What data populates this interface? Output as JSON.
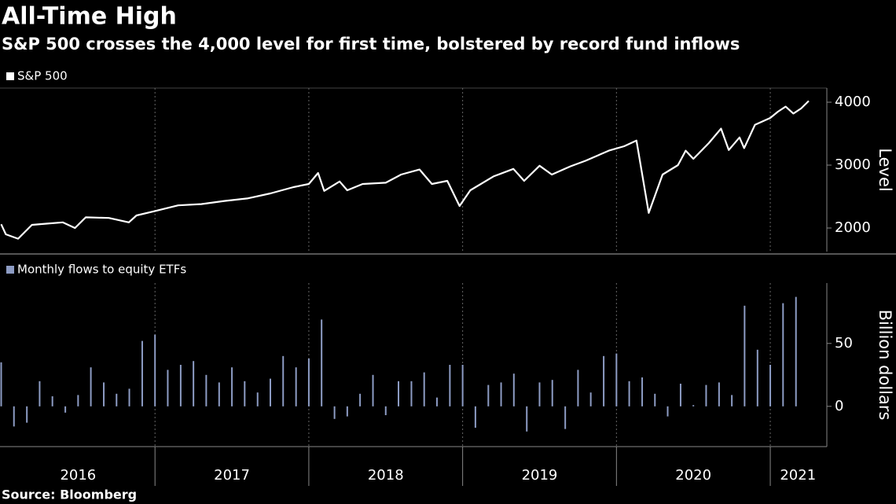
{
  "title": "All-Time High",
  "subtitle": "S&P 500 crosses the 4,000 level for first time, bolstered by record fund inflows",
  "source": "Source: Bloomberg",
  "chart_data": [
    {
      "type": "line",
      "series_name": "S&P 500",
      "color": "#ffffff",
      "ylabel": "Level",
      "x": [
        2016.0,
        2016.03,
        2016.11,
        2016.2,
        2016.3,
        2016.4,
        2016.48,
        2016.55,
        2016.7,
        2016.83,
        2016.88,
        2017.0,
        2017.15,
        2017.3,
        2017.45,
        2017.6,
        2017.75,
        2017.9,
        2018.0,
        2018.06,
        2018.1,
        2018.2,
        2018.25,
        2018.35,
        2018.5,
        2018.6,
        2018.72,
        2018.8,
        2018.9,
        2018.98,
        2019.05,
        2019.2,
        2019.33,
        2019.4,
        2019.5,
        2019.58,
        2019.7,
        2019.8,
        2019.95,
        2020.05,
        2020.13,
        2020.21,
        2020.3,
        2020.4,
        2020.45,
        2020.5,
        2020.6,
        2020.68,
        2020.73,
        2020.8,
        2020.83,
        2020.9,
        2021.0,
        2021.05,
        2021.1,
        2021.15,
        2021.2,
        2021.25
      ],
      "values": [
        2060,
        1900,
        1830,
        2050,
        2070,
        2090,
        2000,
        2170,
        2160,
        2090,
        2200,
        2270,
        2360,
        2380,
        2430,
        2470,
        2550,
        2650,
        2700,
        2875,
        2590,
        2740,
        2600,
        2700,
        2720,
        2850,
        2930,
        2700,
        2750,
        2350,
        2600,
        2820,
        2940,
        2750,
        2990,
        2850,
        2980,
        3070,
        3230,
        3300,
        3390,
        2240,
        2850,
        3000,
        3230,
        3100,
        3350,
        3580,
        3240,
        3440,
        3270,
        3640,
        3750,
        3850,
        3930,
        3820,
        3900,
        4020
      ],
      "xlim": [
        2016,
        2021.36
      ],
      "xticks": [
        2017,
        2018,
        2019,
        2020,
        2021
      ],
      "ylim": [
        1625,
        4225
      ],
      "yticks": [
        2000,
        3000,
        4000
      ],
      "grid": true
    },
    {
      "type": "bar",
      "series_name": "Monthly flows to equity ETFs",
      "color": "#8d9cc4",
      "ylabel": "Billion dollars",
      "x": [
        2016.0,
        2016.083,
        2016.167,
        2016.25,
        2016.333,
        2016.417,
        2016.5,
        2016.583,
        2016.667,
        2016.75,
        2016.833,
        2016.917,
        2017.0,
        2017.083,
        2017.167,
        2017.25,
        2017.333,
        2017.417,
        2017.5,
        2017.583,
        2017.667,
        2017.75,
        2017.833,
        2017.917,
        2018.0,
        2018.083,
        2018.167,
        2018.25,
        2018.333,
        2018.417,
        2018.5,
        2018.583,
        2018.667,
        2018.75,
        2018.833,
        2018.917,
        2019.0,
        2019.083,
        2019.167,
        2019.25,
        2019.333,
        2019.417,
        2019.5,
        2019.583,
        2019.667,
        2019.75,
        2019.833,
        2019.917,
        2020.0,
        2020.083,
        2020.167,
        2020.25,
        2020.333,
        2020.417,
        2020.5,
        2020.583,
        2020.667,
        2020.75,
        2020.833,
        2020.917,
        2021.0,
        2021.083,
        2021.167
      ],
      "values": [
        35,
        -16,
        -13,
        20,
        8,
        -5,
        9,
        31,
        19,
        10,
        14,
        52,
        57,
        29,
        33,
        36,
        25,
        19,
        31,
        20,
        11,
        22,
        40,
        31,
        38,
        69,
        -10,
        -8,
        10,
        25,
        -7,
        20,
        20,
        27,
        7,
        33,
        33,
        -17,
        17,
        19,
        26,
        -20,
        19,
        21,
        -18,
        29,
        11,
        40,
        42,
        20,
        23,
        10,
        -8,
        18,
        1,
        17,
        19,
        9,
        80,
        45,
        33,
        82,
        87
      ],
      "xlim": [
        2016,
        2021.36
      ],
      "xticks": [
        2017,
        2018,
        2019,
        2020,
        2021
      ],
      "year_labels": [
        {
          "value": 2016.5,
          "label": "2016"
        },
        {
          "value": 2017.5,
          "label": "2017"
        },
        {
          "value": 2018.5,
          "label": "2018"
        },
        {
          "value": 2019.5,
          "label": "2019"
        },
        {
          "value": 2020.5,
          "label": "2020"
        },
        {
          "value": 2021.18,
          "label": "2021"
        }
      ],
      "ylim": [
        -32,
        98
      ],
      "yticks": [
        0,
        50
      ],
      "grid": true
    }
  ]
}
